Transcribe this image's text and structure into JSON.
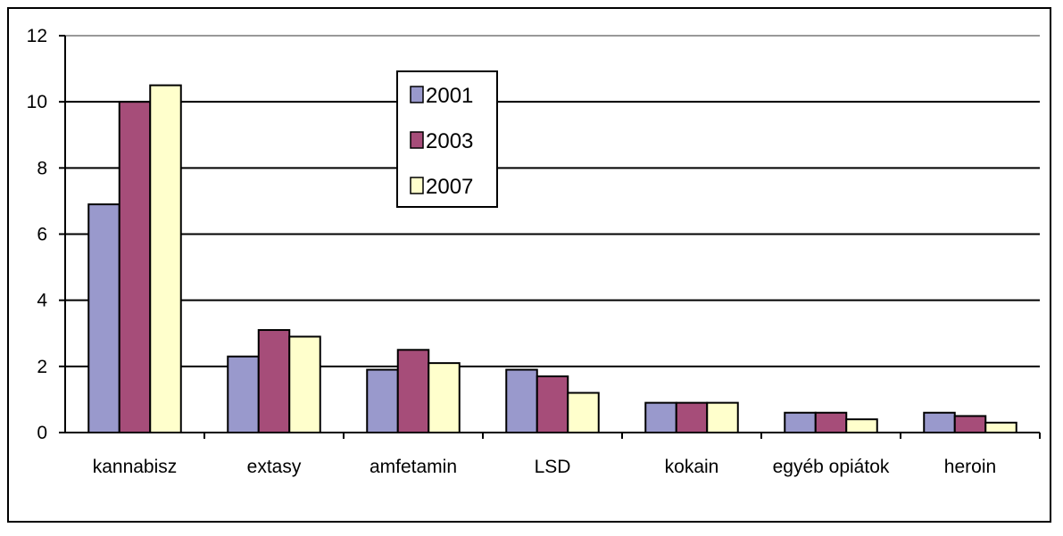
{
  "chart_data": {
    "type": "bar",
    "title": "",
    "xlabel": "",
    "ylabel": "",
    "categories": [
      "kannabisz",
      "extasy",
      "amfetamin",
      "LSD",
      "kokain",
      "egyéb opiátok",
      "heroin"
    ],
    "series": [
      {
        "name": "2001",
        "color": "#9999cc",
        "values": [
          6.9,
          2.3,
          1.9,
          1.9,
          0.9,
          0.6,
          0.6
        ]
      },
      {
        "name": "2003",
        "color": "#a64d79",
        "values": [
          10.0,
          3.1,
          2.5,
          1.7,
          0.9,
          0.6,
          0.5
        ]
      },
      {
        "name": "2007",
        "color": "#ffffcc",
        "values": [
          10.5,
          2.9,
          2.1,
          1.2,
          0.9,
          0.4,
          0.3
        ]
      }
    ],
    "ylim": [
      0,
      12
    ],
    "yticks": [
      0,
      2,
      4,
      6,
      8,
      10,
      12
    ],
    "grid": true,
    "legend_position": "top-center"
  }
}
